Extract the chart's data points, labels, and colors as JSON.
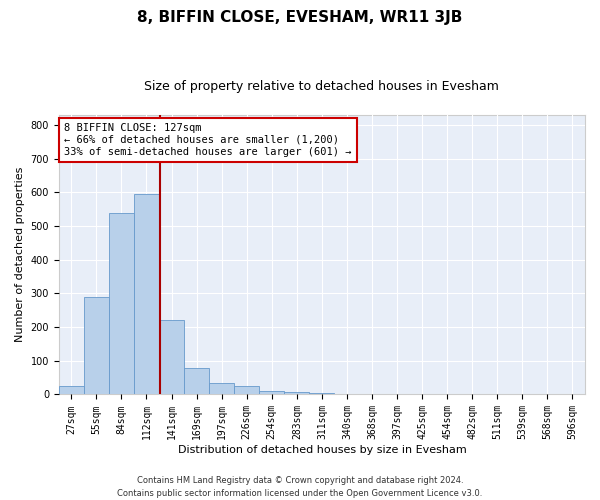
{
  "title": "8, BIFFIN CLOSE, EVESHAM, WR11 3JB",
  "subtitle": "Size of property relative to detached houses in Evesham",
  "xlabel": "Distribution of detached houses by size in Evesham",
  "ylabel": "Number of detached properties",
  "bin_labels": [
    "27sqm",
    "55sqm",
    "84sqm",
    "112sqm",
    "141sqm",
    "169sqm",
    "197sqm",
    "226sqm",
    "254sqm",
    "283sqm",
    "311sqm",
    "340sqm",
    "368sqm",
    "397sqm",
    "425sqm",
    "454sqm",
    "482sqm",
    "511sqm",
    "539sqm",
    "568sqm",
    "596sqm"
  ],
  "bar_heights": [
    25,
    290,
    540,
    595,
    220,
    78,
    33,
    25,
    10,
    8,
    3,
    0,
    0,
    0,
    0,
    0,
    0,
    0,
    0,
    0,
    0
  ],
  "bar_color": "#b8d0ea",
  "bar_edge_color": "#6699cc",
  "vline_x_index": 3,
  "vline_x_offset": 0.55,
  "vline_color": "#aa0000",
  "annotation_text": "8 BIFFIN CLOSE: 127sqm\n← 66% of detached houses are smaller (1,200)\n33% of semi-detached houses are larger (601) →",
  "annotation_box_color": "#ffffff",
  "annotation_box_edge": "#cc0000",
  "ylim": [
    0,
    830
  ],
  "yticks": [
    0,
    100,
    200,
    300,
    400,
    500,
    600,
    700,
    800
  ],
  "footer": "Contains HM Land Registry data © Crown copyright and database right 2024.\nContains public sector information licensed under the Open Government Licence v3.0.",
  "background_color": "#e8eef8",
  "title_fontsize": 11,
  "subtitle_fontsize": 9,
  "tick_label_fontsize": 7,
  "axis_label_fontsize": 8,
  "annotation_fontsize": 7.5,
  "footer_fontsize": 6
}
